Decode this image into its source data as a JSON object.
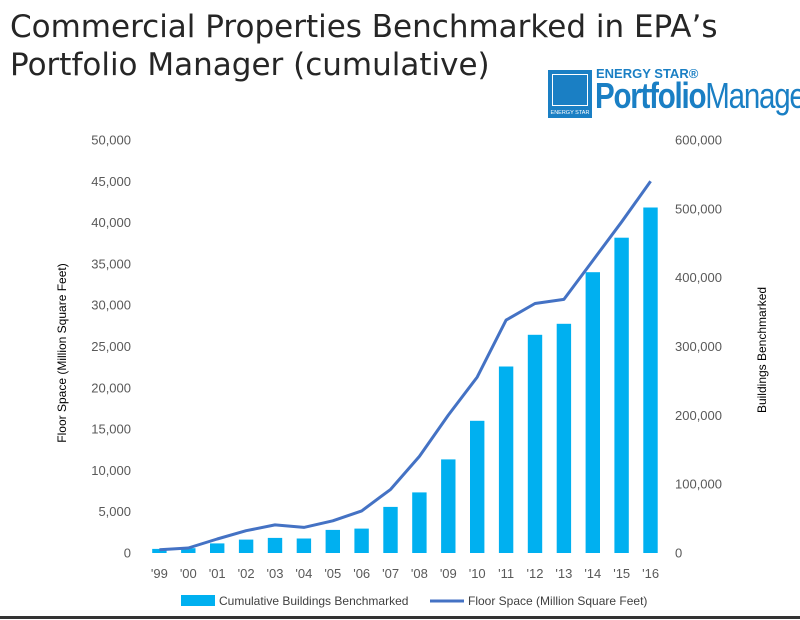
{
  "title": {
    "line1": "Commercial Properties Benchmarked in EPA’s",
    "line2": "Portfolio Manager (cumulative)"
  },
  "logo": {
    "top_text": "ENERGY STAR®",
    "main_bold": "Portfolio",
    "main_rest": "Manager®",
    "mark_text": "ENERGY STAR"
  },
  "colors": {
    "bar": "#00b0f0",
    "line": "#4472c4",
    "axis_text": "#595959",
    "brand": "#1a7fc4"
  },
  "chart_data": {
    "type": "bar",
    "title": "Commercial Properties Benchmarked in EPA’s Portfolio Manager (cumulative)",
    "categories": [
      "'99",
      "'00",
      "'01",
      "'02",
      "'03",
      "'04",
      "'05",
      "'06",
      "'07",
      "'08",
      "'09",
      "'10",
      "'11",
      "'12",
      "'13",
      "'14",
      "'15",
      "'16"
    ],
    "series": [
      {
        "name": "Cumulative Buildings Benchmarked",
        "type": "bar",
        "axis": "right",
        "values": [
          6000,
          7000,
          14000,
          19500,
          22000,
          21000,
          33500,
          35500,
          67000,
          88000,
          136000,
          192000,
          271000,
          317000,
          333000,
          408000,
          458000,
          502000
        ]
      },
      {
        "name": "Floor Space (Million Square Feet)",
        "type": "line",
        "axis": "left",
        "values": [
          400,
          600,
          1700,
          2700,
          3400,
          3100,
          3900,
          5100,
          7700,
          11700,
          16700,
          21300,
          28200,
          30200,
          30700,
          35400,
          40100,
          45000
        ]
      }
    ],
    "ylabel": "Floor Space (Million Square Feet)",
    "y2label": "Buildings Benchmarked",
    "ylim": [
      0,
      50000
    ],
    "y2lim": [
      0,
      600000
    ],
    "yticks": [
      "0",
      "5,000",
      "10,000",
      "15,000",
      "20,000",
      "25,000",
      "30,000",
      "35,000",
      "40,000",
      "45,000",
      "50,000"
    ],
    "y2ticks": [
      "0",
      "100,000",
      "200,000",
      "300,000",
      "400,000",
      "500,000",
      "600,000"
    ],
    "grid": false,
    "legend": "bottom"
  }
}
